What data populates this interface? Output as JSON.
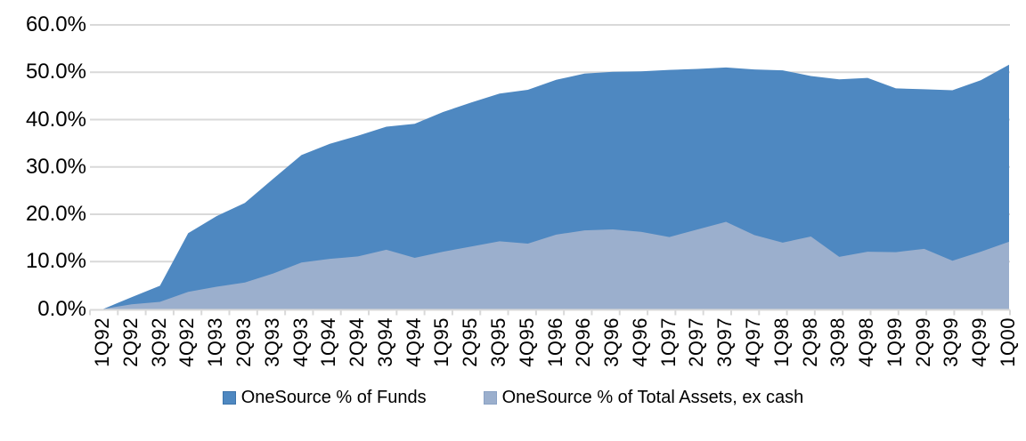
{
  "chart_data": {
    "type": "area",
    "title": "",
    "xlabel": "",
    "ylabel": "",
    "ylim": [
      0,
      60
    ],
    "ytick_labels": [
      "0.0%",
      "10.0%",
      "20.0%",
      "30.0%",
      "40.0%",
      "50.0%",
      "60.0%"
    ],
    "ytick_values": [
      0,
      10,
      20,
      30,
      40,
      50,
      60
    ],
    "grid": "horizontal",
    "legend_position": "bottom-center",
    "categories": [
      "1Q92",
      "2Q92",
      "3Q92",
      "4Q92",
      "1Q93",
      "2Q93",
      "3Q93",
      "4Q93",
      "1Q94",
      "2Q94",
      "3Q94",
      "4Q94",
      "1Q95",
      "2Q95",
      "3Q95",
      "4Q95",
      "1Q96",
      "2Q96",
      "3Q96",
      "4Q96",
      "1Q97",
      "2Q97",
      "3Q97",
      "4Q97",
      "1Q98",
      "2Q98",
      "3Q98",
      "4Q98",
      "1Q99",
      "2Q99",
      "3Q99",
      "4Q99",
      "1Q00"
    ],
    "series": [
      {
        "name": "OneSource % of Funds",
        "color": "#4E88C1",
        "swatch_border": "#3D74AB",
        "values": [
          0.0,
          2.5,
          4.9,
          16.0,
          19.6,
          22.4,
          27.5,
          32.5,
          34.9,
          36.6,
          38.5,
          39.1,
          41.6,
          43.6,
          45.5,
          46.3,
          48.4,
          49.7,
          50.1,
          50.2,
          50.5,
          50.7,
          51.0,
          50.6,
          50.4,
          49.2,
          48.5,
          48.8,
          46.6,
          46.4,
          46.2,
          48.3,
          51.6
        ]
      },
      {
        "name": "OneSource % of Total Assets, ex cash",
        "color": "#9BAFCD",
        "swatch_border": "#8BA2C4",
        "values": [
          0.0,
          1.0,
          1.5,
          3.6,
          4.7,
          5.6,
          7.5,
          9.8,
          10.6,
          11.1,
          12.5,
          10.8,
          12.1,
          13.2,
          14.3,
          13.8,
          15.7,
          16.6,
          16.8,
          16.3,
          15.2,
          16.8,
          18.4,
          15.6,
          14.0,
          15.3,
          11.0,
          12.1,
          12.0,
          12.7,
          10.2,
          12.1,
          14.2
        ]
      }
    ],
    "colors": {
      "grid": "#D9D9D9",
      "axis": "#D9D9D9",
      "text": "#000000",
      "background": "#FFFFFF"
    }
  }
}
